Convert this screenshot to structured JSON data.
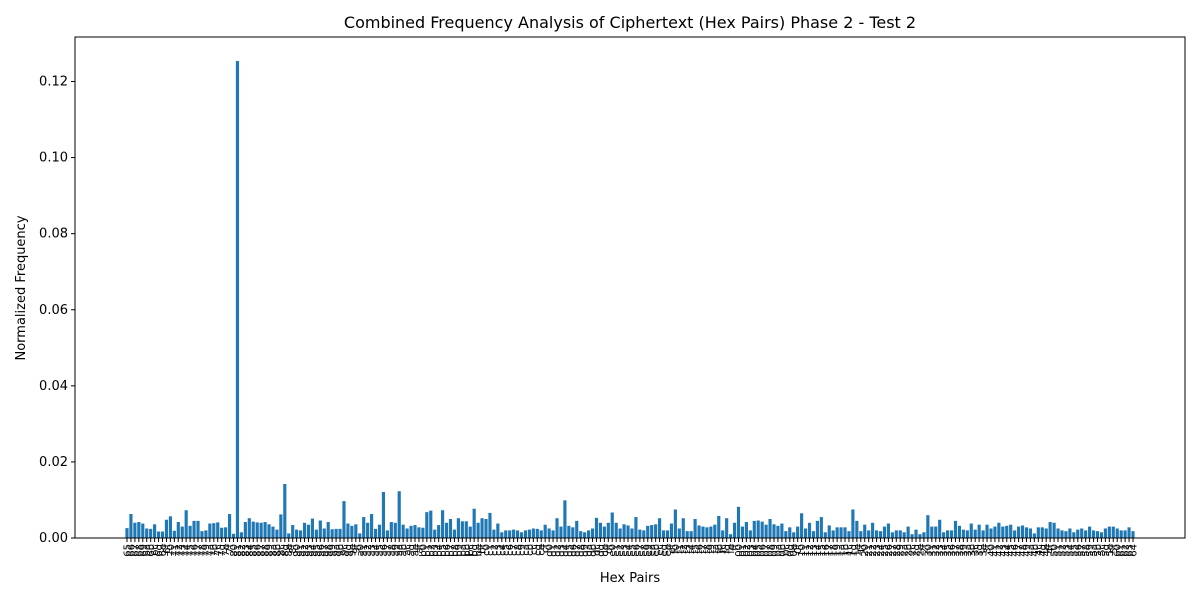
{
  "chart_data": {
    "type": "bar",
    "title": "Combined Frequency Analysis of Ciphertext (Hex Pairs) Phase 2 - Test 2",
    "xlabel": "Hex Pairs",
    "ylabel": "Normalized Frequency",
    "color": "#1f77b4",
    "categories": [
      "65",
      "66",
      "67",
      "68",
      "69",
      "6a",
      "6b",
      "6c",
      "6d",
      "6e",
      "6f",
      "70",
      "71",
      "72",
      "73",
      "74",
      "75",
      "76",
      "77",
      "78",
      "79",
      "7a",
      "7b",
      "7c",
      "7d",
      "7e",
      "7f",
      "80",
      "81",
      "82",
      "83",
      "84",
      "85",
      "86",
      "87",
      "88",
      "89",
      "8a",
      "8b",
      "8c",
      "8d",
      "8e",
      "8f",
      "90",
      "91",
      "92",
      "93",
      "94",
      "95",
      "96",
      "97",
      "98",
      "99",
      "9a",
      "9b",
      "9c",
      "9d",
      "9e",
      "9f",
      "a0",
      "a1",
      "a2",
      "a3",
      "a4",
      "a5",
      "a6",
      "a7",
      "a8",
      "a9",
      "aa",
      "ab",
      "ac",
      "ad",
      "ae",
      "af",
      "b0",
      "b1",
      "b2",
      "b3",
      "b4",
      "b5",
      "b6",
      "b7",
      "b8",
      "b9",
      "ba",
      "bb",
      "bc",
      "bd",
      "be",
      "bf",
      "c0",
      "c1",
      "c2",
      "c3",
      "c4",
      "c5",
      "c6",
      "c7",
      "c8",
      "c9",
      "ca",
      "cb",
      "cc",
      "cd",
      "ce",
      "cf",
      "d0",
      "d1",
      "d2",
      "d3",
      "d4",
      "d5",
      "d6",
      "d7",
      "d8",
      "d9",
      "da",
      "db",
      "dc",
      "dd",
      "de",
      "df",
      "e0",
      "e1",
      "e2",
      "e3",
      "e4",
      "e5",
      "e6",
      "e7",
      "e8",
      "e9",
      "ea",
      "eb",
      "ec",
      "ed",
      "ee",
      "ef",
      "f0",
      "f1",
      "f2",
      "f3",
      "f4",
      "f5",
      "f6",
      "f7",
      "f8",
      "f9",
      "fa",
      "fb",
      "fc",
      "fd",
      "fe",
      "ff",
      "00",
      "01",
      "02",
      "03",
      "04",
      "05",
      "06",
      "07",
      "08",
      "09",
      "0a",
      "0b",
      "0c",
      "0d",
      "0e",
      "0f",
      "10",
      "11",
      "12",
      "13",
      "14",
      "15",
      "16",
      "17",
      "18",
      "19",
      "1a",
      "1b",
      "1c",
      "1d",
      "1e",
      "1f",
      "20",
      "21",
      "22",
      "23",
      "24",
      "25",
      "26",
      "27",
      "28",
      "29",
      "2a",
      "2b",
      "2c",
      "2d",
      "2e",
      "2f",
      "30",
      "31",
      "32",
      "33",
      "34",
      "35",
      "36",
      "37",
      "38",
      "39",
      "3a",
      "3b",
      "3c",
      "3d",
      "3e",
      "3f",
      "40",
      "41",
      "42",
      "43",
      "44",
      "45",
      "46",
      "47",
      "48",
      "49",
      "4a",
      "4b",
      "4c",
      "4d",
      "4e",
      "4f",
      "50",
      "51",
      "52",
      "53",
      "54",
      "55",
      "56",
      "57",
      "58",
      "59",
      "5a",
      "5b",
      "5c",
      "5d",
      "5e",
      "5f",
      "60",
      "61",
      "62",
      "63",
      "64"
    ],
    "values": [
      0.0026,
      0.0063,
      0.004,
      0.0042,
      0.0038,
      0.0025,
      0.0024,
      0.0036,
      0.0017,
      0.0017,
      0.0048,
      0.0057,
      0.0019,
      0.0042,
      0.003,
      0.0073,
      0.0032,
      0.0045,
      0.0045,
      0.0018,
      0.002,
      0.0038,
      0.0039,
      0.0041,
      0.0027,
      0.0028,
      0.0063,
      0.0011,
      0.1254,
      0.0015,
      0.0042,
      0.0052,
      0.0043,
      0.0041,
      0.004,
      0.0042,
      0.0036,
      0.003,
      0.0022,
      0.0062,
      0.0142,
      0.0012,
      0.0034,
      0.0022,
      0.002,
      0.004,
      0.0035,
      0.0051,
      0.0022,
      0.0046,
      0.0025,
      0.0042,
      0.0023,
      0.0024,
      0.0024,
      0.0097,
      0.0038,
      0.0032,
      0.0036,
      0.0012,
      0.0055,
      0.004,
      0.0063,
      0.0024,
      0.0035,
      0.0121,
      0.002,
      0.0042,
      0.004,
      0.0123,
      0.0035,
      0.0025,
      0.0032,
      0.0034,
      0.0028,
      0.0027,
      0.0068,
      0.0072,
      0.0022,
      0.0034,
      0.0073,
      0.004,
      0.005,
      0.0022,
      0.0052,
      0.0044,
      0.0044,
      0.003,
      0.0077,
      0.004,
      0.0052,
      0.005,
      0.0066,
      0.0022,
      0.0038,
      0.0015,
      0.002,
      0.002,
      0.0022,
      0.002,
      0.0015,
      0.002,
      0.0022,
      0.0025,
      0.0024,
      0.002,
      0.0035,
      0.0025,
      0.002,
      0.0052,
      0.003,
      0.0099,
      0.0032,
      0.0028,
      0.0045,
      0.0018,
      0.0015,
      0.002,
      0.0025,
      0.0053,
      0.004,
      0.003,
      0.004,
      0.0067,
      0.004,
      0.0025,
      0.0036,
      0.0033,
      0.0025,
      0.0055,
      0.0022,
      0.002,
      0.0032,
      0.0034,
      0.0036,
      0.0052,
      0.002,
      0.002,
      0.0038,
      0.0075,
      0.0025,
      0.0052,
      0.0018,
      0.0018,
      0.005,
      0.0033,
      0.003,
      0.0028,
      0.003,
      0.0035,
      0.0058,
      0.002,
      0.0052,
      0.001,
      0.004,
      0.0082,
      0.003,
      0.0042,
      0.002,
      0.0045,
      0.0046,
      0.0043,
      0.0035,
      0.005,
      0.0036,
      0.0032,
      0.0038,
      0.0018,
      0.0028,
      0.0015,
      0.003,
      0.0065,
      0.0025,
      0.004,
      0.0018,
      0.0045,
      0.0055,
      0.0015,
      0.0033,
      0.002,
      0.0028,
      0.0028,
      0.0028,
      0.0018,
      0.0075,
      0.0045,
      0.0018,
      0.0035,
      0.002,
      0.004,
      0.002,
      0.0018,
      0.003,
      0.0038,
      0.0015,
      0.002,
      0.002,
      0.0015,
      0.003,
      0.001,
      0.0022,
      0.001,
      0.0015,
      0.006,
      0.003,
      0.003,
      0.0048,
      0.0015,
      0.002,
      0.002,
      0.0045,
      0.0032,
      0.0022,
      0.002,
      0.0038,
      0.0022,
      0.0035,
      0.002,
      0.0035,
      0.0025,
      0.003,
      0.004,
      0.003,
      0.0032,
      0.0035,
      0.002,
      0.003,
      0.0033,
      0.0028,
      0.0025,
      0.0012,
      0.0028,
      0.0028,
      0.0025,
      0.0042,
      0.004,
      0.0025,
      0.002,
      0.0018,
      0.0025,
      0.0015,
      0.0022,
      0.0025,
      0.002,
      0.003,
      0.002,
      0.0018,
      0.0015,
      0.0025,
      0.003,
      0.003,
      0.0025,
      0.002,
      0.002,
      0.0028,
      0.0018
    ],
    "ylim": [
      0,
      0.1317
    ],
    "yticks": [
      {
        "value": 0,
        "label": "0.00"
      },
      {
        "value": 0.02,
        "label": "0.02"
      },
      {
        "value": 0.04,
        "label": "0.04"
      },
      {
        "value": 0.06,
        "label": "0.06"
      },
      {
        "value": 0.08,
        "label": "0.08"
      },
      {
        "value": 0.1,
        "label": "0.10"
      },
      {
        "value": 0.12,
        "label": "0.12"
      }
    ]
  }
}
